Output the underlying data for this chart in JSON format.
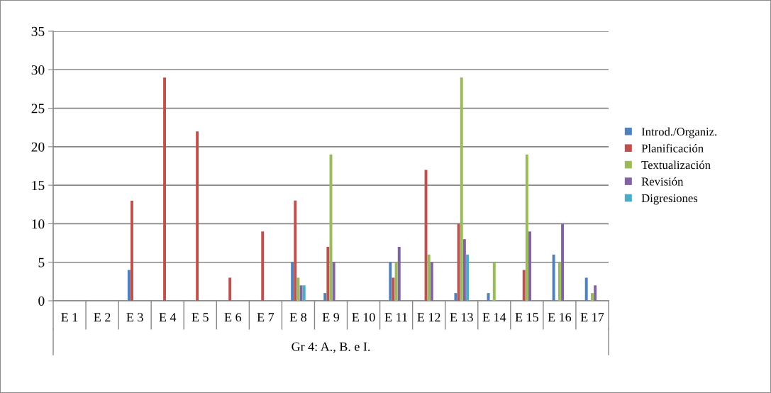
{
  "chart_data": {
    "type": "bar",
    "xlabel": "Gr 4: A., B. e I.",
    "categories": [
      "E 1",
      "E 2",
      "E 3",
      "E 4",
      "E 5",
      "E 6",
      "E 7",
      "E 8",
      "E 9",
      "E 10",
      "E 11",
      "E 12",
      "E 13",
      "E 14",
      "E 15",
      "E 16",
      "E 17"
    ],
    "series": [
      {
        "name": "Introd./Organiz.",
        "color": "#4f81bd",
        "values": [
          0,
          0,
          4,
          0,
          0,
          0,
          0,
          5,
          1,
          0,
          5,
          0,
          1,
          1,
          0,
          6,
          3
        ]
      },
      {
        "name": "Planificación",
        "color": "#c0504d",
        "values": [
          0,
          0,
          13,
          29,
          22,
          3,
          9,
          13,
          7,
          0,
          3,
          17,
          10,
          0,
          4,
          0,
          0
        ]
      },
      {
        "name": "Textualización",
        "color": "#9bbb59",
        "values": [
          0,
          0,
          0,
          0,
          0,
          0,
          0,
          3,
          19,
          0,
          5,
          6,
          29,
          5,
          19,
          5,
          1
        ]
      },
      {
        "name": "Revisión",
        "color": "#8064a2",
        "values": [
          0,
          0,
          0,
          0,
          0,
          0,
          0,
          2,
          5,
          0,
          7,
          5,
          8,
          0,
          9,
          10,
          2
        ]
      },
      {
        "name": "Digresiones",
        "color": "#4bacc6",
        "values": [
          0,
          0,
          0,
          0,
          0,
          0,
          0,
          2,
          0,
          0,
          0,
          0,
          6,
          0,
          0,
          0,
          0
        ]
      }
    ],
    "ylim": [
      0,
      35
    ],
    "yticks": [
      0,
      5,
      10,
      15,
      20,
      25,
      30,
      35
    ],
    "grid": "y",
    "legend": "right"
  }
}
